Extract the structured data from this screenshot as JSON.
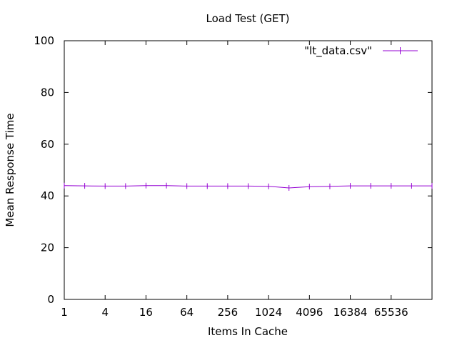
{
  "chart_data": {
    "type": "line",
    "title": "Load Test (GET)",
    "xlabel": "Items In Cache",
    "ylabel": "Mean Response Time",
    "x_scale": "log2",
    "xlim": [
      1,
      262144
    ],
    "ylim": [
      0,
      100
    ],
    "x_ticks": [
      "1",
      "4",
      "16",
      "64",
      "256",
      "1024",
      "4096",
      "16384",
      "65536"
    ],
    "y_ticks": [
      "0",
      "20",
      "40",
      "60",
      "80",
      "100"
    ],
    "grid": false,
    "legend_position": "top-right",
    "series": [
      {
        "name": "\"lt_data.csv\"",
        "color": "#9400d3",
        "x": [
          1,
          2,
          4,
          8,
          16,
          32,
          64,
          128,
          256,
          512,
          1024,
          2048,
          4096,
          8192,
          16384,
          32768,
          65536,
          131072,
          262144
        ],
        "y": [
          44,
          43.9,
          43.8,
          43.8,
          44.0,
          44.0,
          43.8,
          43.8,
          43.8,
          43.8,
          43.7,
          43.1,
          43.6,
          43.7,
          43.9,
          43.9,
          43.9,
          43.9,
          43.9
        ]
      }
    ]
  }
}
